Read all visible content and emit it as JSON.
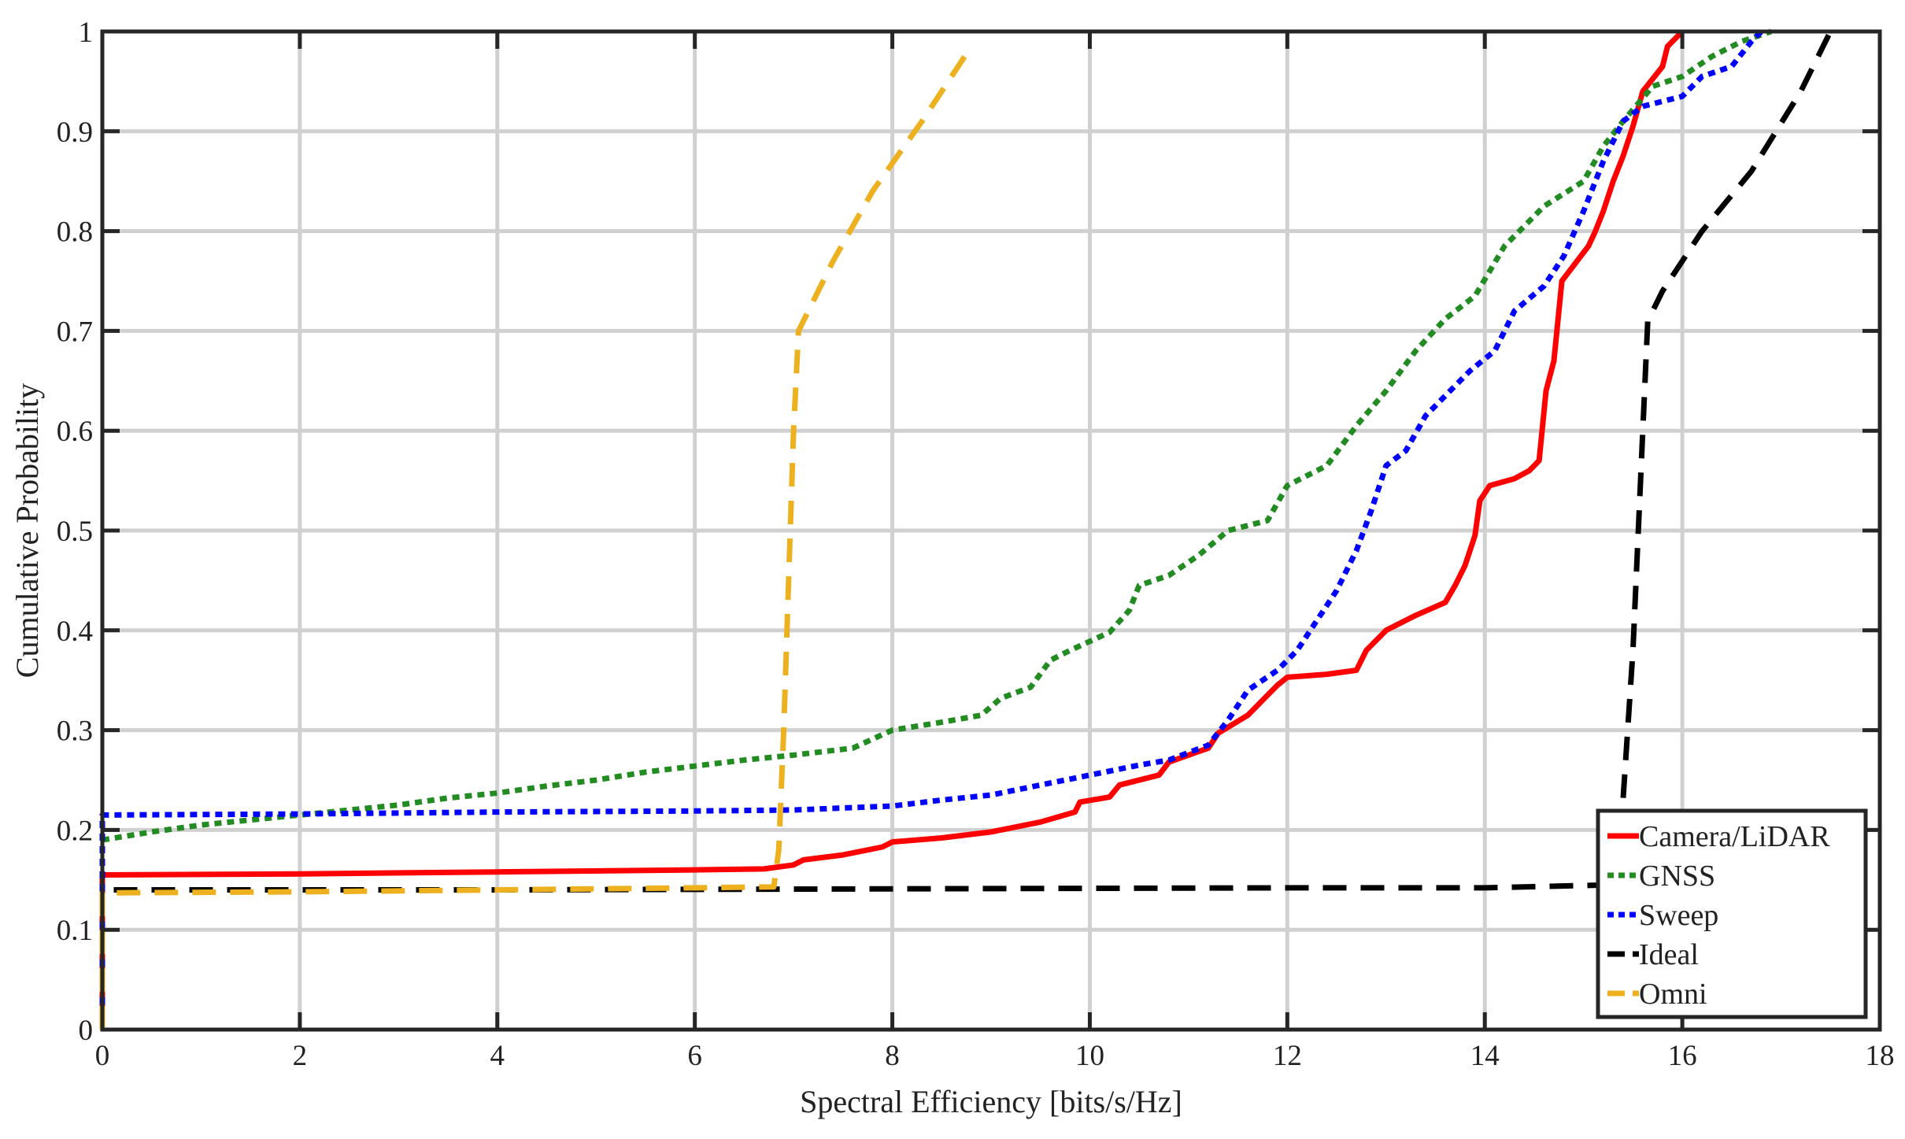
{
  "chart_data": {
    "type": "line",
    "title": "",
    "xlabel": "Spectral Efficiency [bits/s/Hz]",
    "ylabel": "Cumulative Probability",
    "xlim": [
      0,
      18
    ],
    "ylim": [
      0,
      1
    ],
    "xticks": [
      0,
      2,
      4,
      6,
      8,
      10,
      12,
      14,
      16,
      18
    ],
    "yticks": [
      0,
      0.1,
      0.2,
      0.3,
      0.4,
      0.5,
      0.6,
      0.7,
      0.8,
      0.9,
      1
    ],
    "xtick_labels": [
      "0",
      "2",
      "4",
      "6",
      "8",
      "10",
      "12",
      "14",
      "16",
      "18"
    ],
    "ytick_labels": [
      "0",
      "0.1",
      "0.2",
      "0.3",
      "0.4",
      "0.5",
      "0.6",
      "0.7",
      "0.8",
      "0.9",
      "1"
    ],
    "grid": true,
    "legend_position": "bottom-right",
    "series": [
      {
        "name": "Camera/LiDAR",
        "color": "#ff0000",
        "style": "solid",
        "points": [
          [
            0,
            0
          ],
          [
            0,
            0.155
          ],
          [
            2,
            0.156
          ],
          [
            4,
            0.158
          ],
          [
            6,
            0.16
          ],
          [
            6.7,
            0.161
          ],
          [
            7,
            0.165
          ],
          [
            7.1,
            0.17
          ],
          [
            7.5,
            0.175
          ],
          [
            7.9,
            0.183
          ],
          [
            8,
            0.188
          ],
          [
            8.5,
            0.192
          ],
          [
            9,
            0.198
          ],
          [
            9.5,
            0.208
          ],
          [
            9.85,
            0.218
          ],
          [
            9.9,
            0.228
          ],
          [
            10.2,
            0.233
          ],
          [
            10.3,
            0.245
          ],
          [
            10.7,
            0.255
          ],
          [
            10.8,
            0.268
          ],
          [
            11.2,
            0.282
          ],
          [
            11.3,
            0.297
          ],
          [
            11.6,
            0.315
          ],
          [
            11.7,
            0.325
          ],
          [
            11.8,
            0.335
          ],
          [
            11.9,
            0.345
          ],
          [
            12,
            0.353
          ],
          [
            12.4,
            0.356
          ],
          [
            12.7,
            0.36
          ],
          [
            12.8,
            0.38
          ],
          [
            13,
            0.4
          ],
          [
            13.3,
            0.415
          ],
          [
            13.6,
            0.428
          ],
          [
            13.7,
            0.445
          ],
          [
            13.8,
            0.465
          ],
          [
            13.9,
            0.495
          ],
          [
            13.95,
            0.53
          ],
          [
            14.05,
            0.545
          ],
          [
            14.3,
            0.552
          ],
          [
            14.45,
            0.56
          ],
          [
            14.55,
            0.57
          ],
          [
            14.62,
            0.64
          ],
          [
            14.7,
            0.67
          ],
          [
            14.78,
            0.75
          ],
          [
            15.05,
            0.785
          ],
          [
            15.12,
            0.8
          ],
          [
            15.2,
            0.82
          ],
          [
            15.3,
            0.85
          ],
          [
            15.4,
            0.875
          ],
          [
            15.5,
            0.905
          ],
          [
            15.6,
            0.94
          ],
          [
            15.8,
            0.965
          ],
          [
            15.85,
            0.985
          ],
          [
            15.95,
            0.995
          ],
          [
            16,
            1
          ]
        ]
      },
      {
        "name": "GNSS",
        "color": "#228b22",
        "style": "dotted",
        "points": [
          [
            0,
            0.19
          ],
          [
            0.5,
            0.198
          ],
          [
            1,
            0.205
          ],
          [
            1.5,
            0.21
          ],
          [
            2,
            0.215
          ],
          [
            2.5,
            0.22
          ],
          [
            3,
            0.225
          ],
          [
            3.5,
            0.232
          ],
          [
            4,
            0.237
          ],
          [
            4.5,
            0.244
          ],
          [
            5,
            0.25
          ],
          [
            5.5,
            0.258
          ],
          [
            6,
            0.264
          ],
          [
            6.5,
            0.27
          ],
          [
            7,
            0.275
          ],
          [
            7.6,
            0.282
          ],
          [
            8,
            0.3
          ],
          [
            8.5,
            0.308
          ],
          [
            8.9,
            0.315
          ],
          [
            9.1,
            0.332
          ],
          [
            9.4,
            0.343
          ],
          [
            9.6,
            0.37
          ],
          [
            9.8,
            0.38
          ],
          [
            10.2,
            0.398
          ],
          [
            10.4,
            0.42
          ],
          [
            10.5,
            0.445
          ],
          [
            10.8,
            0.455
          ],
          [
            11.1,
            0.475
          ],
          [
            11.4,
            0.5
          ],
          [
            11.8,
            0.51
          ],
          [
            12,
            0.545
          ],
          [
            12.4,
            0.565
          ],
          [
            12.7,
            0.605
          ],
          [
            13,
            0.64
          ],
          [
            13.3,
            0.68
          ],
          [
            13.6,
            0.712
          ],
          [
            13.9,
            0.735
          ],
          [
            14.2,
            0.785
          ],
          [
            14.6,
            0.825
          ],
          [
            15,
            0.85
          ],
          [
            15.2,
            0.885
          ],
          [
            15.4,
            0.91
          ],
          [
            15.7,
            0.945
          ],
          [
            16,
            0.955
          ],
          [
            16.3,
            0.975
          ],
          [
            16.6,
            0.99
          ],
          [
            16.9,
            1
          ]
        ]
      },
      {
        "name": "Sweep",
        "color": "#0000ff",
        "style": "dotted",
        "points": [
          [
            0,
            0
          ],
          [
            0,
            0.215
          ],
          [
            2,
            0.216
          ],
          [
            4,
            0.218
          ],
          [
            6,
            0.219
          ],
          [
            7,
            0.22
          ],
          [
            8,
            0.224
          ],
          [
            8.5,
            0.23
          ],
          [
            9,
            0.235
          ],
          [
            9.5,
            0.245
          ],
          [
            10,
            0.255
          ],
          [
            10.5,
            0.265
          ],
          [
            10.8,
            0.27
          ],
          [
            11.2,
            0.285
          ],
          [
            11.4,
            0.31
          ],
          [
            11.6,
            0.34
          ],
          [
            11.9,
            0.36
          ],
          [
            12.1,
            0.38
          ],
          [
            12.3,
            0.41
          ],
          [
            12.5,
            0.44
          ],
          [
            12.7,
            0.48
          ],
          [
            12.85,
            0.52
          ],
          [
            13,
            0.565
          ],
          [
            13.2,
            0.58
          ],
          [
            13.4,
            0.615
          ],
          [
            13.6,
            0.635
          ],
          [
            13.85,
            0.66
          ],
          [
            14.1,
            0.68
          ],
          [
            14.3,
            0.72
          ],
          [
            14.6,
            0.745
          ],
          [
            14.8,
            0.775
          ],
          [
            15,
            0.82
          ],
          [
            15.2,
            0.87
          ],
          [
            15.4,
            0.91
          ],
          [
            15.6,
            0.925
          ],
          [
            16,
            0.935
          ],
          [
            16.2,
            0.955
          ],
          [
            16.5,
            0.965
          ],
          [
            16.7,
            0.99
          ],
          [
            16.8,
            1
          ]
        ]
      },
      {
        "name": "Ideal",
        "color": "#000000",
        "style": "dashed",
        "points": [
          [
            0,
            0
          ],
          [
            0,
            0.14
          ],
          [
            4,
            0.14
          ],
          [
            8,
            0.141
          ],
          [
            12,
            0.142
          ],
          [
            14,
            0.142
          ],
          [
            15.3,
            0.145
          ],
          [
            15.4,
            0.23
          ],
          [
            15.5,
            0.38
          ],
          [
            15.6,
            0.6
          ],
          [
            15.65,
            0.71
          ],
          [
            15.8,
            0.74
          ],
          [
            16.2,
            0.8
          ],
          [
            16.7,
            0.86
          ],
          [
            17.2,
            0.94
          ],
          [
            17.5,
            1
          ]
        ]
      },
      {
        "name": "Omni",
        "color": "#edb120",
        "style": "dashed",
        "points": [
          [
            0,
            0
          ],
          [
            0,
            0.137
          ],
          [
            2,
            0.138
          ],
          [
            4,
            0.14
          ],
          [
            6,
            0.142
          ],
          [
            6.8,
            0.143
          ],
          [
            6.85,
            0.18
          ],
          [
            6.9,
            0.3
          ],
          [
            6.95,
            0.45
          ],
          [
            7,
            0.6
          ],
          [
            7.05,
            0.7
          ],
          [
            7.4,
            0.77
          ],
          [
            7.8,
            0.84
          ],
          [
            8.3,
            0.91
          ],
          [
            8.8,
            0.985
          ]
        ]
      }
    ]
  }
}
